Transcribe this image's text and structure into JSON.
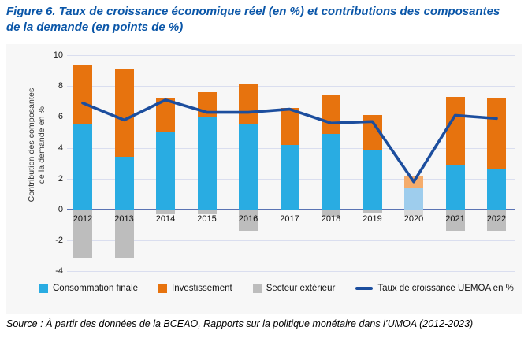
{
  "figure": {
    "title_line1": "Figure 6. Taux de croissance économique réel (en %) et contributions des composantes",
    "title_line2": "de la demande (en points de %)",
    "source": "Source : À partir des données de la BCEAO, Rapports sur la politique monétaire dans l’UMOA (2012-2023)"
  },
  "chart_data": {
    "type": "bar",
    "stacked": true,
    "grid": true,
    "legend_position": "bottom",
    "title": "",
    "xlabel": "",
    "ylabel": "Contribution des composantes\nde la demande en %",
    "ylim": [
      -4,
      10
    ],
    "yticks": [
      10,
      8,
      6,
      4,
      2,
      0,
      -2,
      -4
    ],
    "categories": [
      "2012",
      "2013",
      "2014",
      "2015",
      "2016",
      "2017",
      "2018",
      "2019",
      "2020",
      "2021",
      "2022"
    ],
    "series": [
      {
        "name": "Consommation finale",
        "color": "#29ACE2",
        "muted_color": "#9ECDED",
        "values": [
          5.5,
          3.4,
          5.0,
          6.0,
          5.5,
          4.2,
          4.9,
          3.9,
          1.4,
          2.9,
          2.6
        ]
      },
      {
        "name": "Investissement",
        "color": "#E7730E",
        "muted_color": "#F5AC6B",
        "values": [
          3.9,
          5.7,
          2.2,
          1.6,
          2.6,
          2.4,
          2.5,
          2.2,
          0.8,
          4.4,
          4.6
        ]
      },
      {
        "name": "Secteur extérieur",
        "color": "#BDBDBD",
        "muted_color": "#D8D8D8",
        "values": [
          -3.1,
          -3.1,
          -0.3,
          -0.3,
          -1.4,
          0.0,
          -0.5,
          -0.2,
          -0.4,
          -1.4,
          -1.4
        ]
      }
    ],
    "line_series": {
      "name": "Taux de croissance UEMOA en %",
      "color": "#1C4E9E",
      "values": [
        6.9,
        5.8,
        7.1,
        6.3,
        6.3,
        6.5,
        5.6,
        5.7,
        1.8,
        6.1,
        5.9
      ]
    },
    "muted_category_index": 8,
    "axis_colors": {
      "gridline": "#dadeef",
      "zero_line": "#5b74b4"
    }
  }
}
